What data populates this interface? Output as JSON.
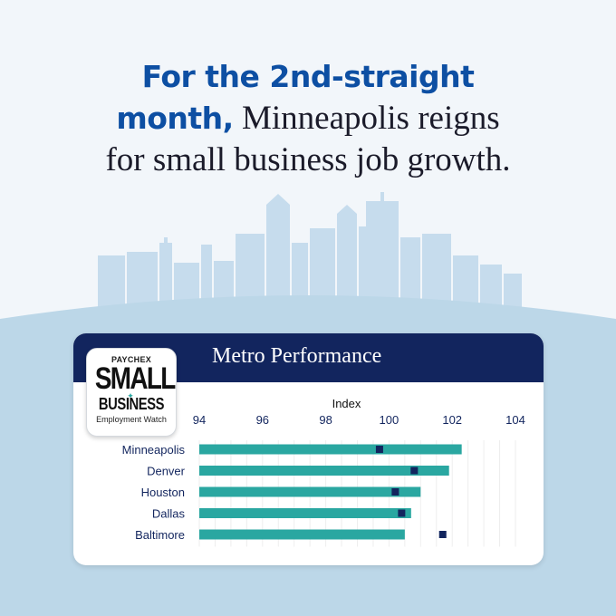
{
  "headline": {
    "bold_line1": "For the 2nd-straight",
    "bold_line2": "month,",
    "rest_line2": "Minneapolis reigns",
    "line3": "for small business job growth."
  },
  "logo": {
    "brand": "PAYCHEX",
    "word1": "SMALL",
    "word2": "BUSINESS",
    "sub": "Employment Watch"
  },
  "colors": {
    "bar": "#2aa7a1",
    "marker": "#12255e",
    "header": "#12255e",
    "headline_accent": "#0d4fa3",
    "label": "#12255e"
  },
  "chart_data": {
    "type": "bar",
    "orientation": "horizontal",
    "title": "Metro Performance",
    "xlabel": "Index",
    "xlim": [
      94,
      104
    ],
    "ticks": [
      94,
      96,
      98,
      100,
      102,
      104
    ],
    "categories": [
      "Minneapolis",
      "Denver",
      "Houston",
      "Dallas",
      "Baltimore"
    ],
    "series": [
      {
        "type": "bar",
        "values": [
          102.3,
          101.9,
          101.0,
          100.7,
          100.5
        ]
      },
      {
        "type": "marker",
        "values": [
          99.7,
          100.8,
          100.2,
          100.4,
          101.7
        ]
      }
    ]
  }
}
